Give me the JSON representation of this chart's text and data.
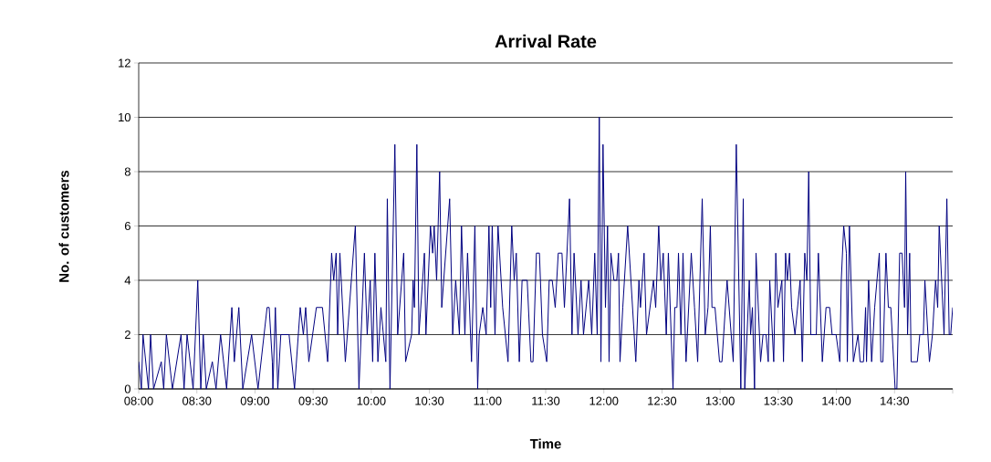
{
  "chart_data": {
    "type": "line",
    "title": "Arrival Rate",
    "xlabel": "Time",
    "ylabel": "No. of customers",
    "color": "#000080",
    "x": [
      8.0,
      8.023,
      8.037,
      8.084,
      8.102,
      8.128,
      8.194,
      8.215,
      8.238,
      8.29,
      8.364,
      8.39,
      8.416,
      8.468,
      8.508,
      8.534,
      8.555,
      8.581,
      8.633,
      8.665,
      8.704,
      8.756,
      8.801,
      8.822,
      8.861,
      8.895,
      8.971,
      9.026,
      9.104,
      9.122,
      9.149,
      9.154,
      9.175,
      9.196,
      9.222,
      9.293,
      9.34,
      9.389,
      9.416,
      9.436,
      9.463,
      9.528,
      9.58,
      9.625,
      9.659,
      9.677,
      9.698,
      9.711,
      9.73,
      9.777,
      9.863,
      9.894,
      9.941,
      9.965,
      9.991,
      10.012,
      10.031,
      10.057,
      10.083,
      10.125,
      10.138,
      10.161,
      10.203,
      10.227,
      10.279,
      10.295,
      10.347,
      10.36,
      10.371,
      10.392,
      10.41,
      10.457,
      10.47,
      10.509,
      10.528,
      10.541,
      10.562,
      10.588,
      10.606,
      10.674,
      10.7,
      10.726,
      10.758,
      10.776,
      10.805,
      10.828,
      10.862,
      10.891,
      10.915,
      10.928,
      10.959,
      10.988,
      11.012,
      11.027,
      11.04,
      11.064,
      11.09,
      11.13,
      11.176,
      11.208,
      11.229,
      11.247,
      11.273,
      11.297,
      11.341,
      11.373,
      11.391,
      11.42,
      11.446,
      11.472,
      11.509,
      11.53,
      11.556,
      11.582,
      11.608,
      11.64,
      11.661,
      11.705,
      11.726,
      11.744,
      11.778,
      11.804,
      11.825,
      11.87,
      11.896,
      11.922,
      11.943,
      11.961,
      11.975,
      11.993,
      12.014,
      12.032,
      12.045,
      12.061,
      12.087,
      12.111,
      12.126,
      12.139,
      12.163,
      12.205,
      12.275,
      12.302,
      12.315,
      12.346,
      12.367,
      12.427,
      12.446,
      12.472,
      12.49,
      12.511,
      12.537,
      12.555,
      12.595,
      12.61,
      12.629,
      12.642,
      12.663,
      12.681,
      12.707,
      12.752,
      12.78,
      12.807,
      12.846,
      12.872,
      12.896,
      12.916,
      12.93,
      12.956,
      12.995,
      13.016,
      13.06,
      13.113,
      13.139,
      13.178,
      13.199,
      13.212,
      13.251,
      13.262,
      13.278,
      13.296,
      13.309,
      13.348,
      13.369,
      13.395,
      13.414,
      13.427,
      13.461,
      13.479,
      13.497,
      13.531,
      13.545,
      13.563,
      13.578,
      13.597,
      13.615,
      13.644,
      13.688,
      13.707,
      13.728,
      13.746,
      13.762,
      13.78,
      13.827,
      13.845,
      13.879,
      13.911,
      13.942,
      13.963,
      13.997,
      14.029,
      14.042,
      14.063,
      14.086,
      14.094,
      14.112,
      14.146,
      14.186,
      14.204,
      14.233,
      14.251,
      14.259,
      14.277,
      14.303,
      14.329,
      14.369,
      14.382,
      14.4,
      14.426,
      14.447,
      14.468,
      14.505,
      14.52,
      14.544,
      14.565,
      14.586,
      14.596,
      14.612,
      14.63,
      14.643,
      14.696,
      14.717,
      14.748,
      14.761,
      14.8,
      14.826,
      14.853,
      14.871,
      14.884,
      14.926,
      14.95,
      14.97,
      14.983,
      15.0
    ],
    "values": [
      1,
      0,
      2,
      0,
      2,
      0,
      1,
      0,
      2,
      0,
      2,
      0,
      2,
      0,
      4,
      0,
      2,
      0,
      1,
      0,
      2,
      0,
      3,
      1,
      3,
      0,
      2,
      0,
      3,
      3,
      1,
      0,
      3,
      0,
      2,
      2,
      0,
      3,
      2,
      3,
      1,
      3,
      3,
      1,
      5,
      4,
      5,
      2,
      5,
      1,
      6,
      0,
      5,
      2,
      4,
      1,
      5,
      1,
      3,
      1,
      7,
      0,
      9,
      2,
      5,
      1,
      2,
      4,
      3,
      9,
      2,
      5,
      2,
      6,
      5,
      6,
      4,
      8,
      3,
      7,
      2,
      4,
      2,
      6,
      2,
      5,
      1,
      6,
      0,
      2,
      3,
      2,
      6,
      3,
      6,
      2,
      6,
      3,
      1,
      6,
      4,
      5,
      1,
      4,
      4,
      1,
      1,
      5,
      5,
      2,
      1,
      4,
      4,
      3,
      5,
      5,
      3,
      7,
      2,
      5,
      2,
      4,
      2,
      4,
      2,
      5,
      2,
      10,
      1,
      9,
      3,
      6,
      1,
      5,
      4,
      4,
      5,
      1,
      3,
      6,
      1,
      4,
      3,
      5,
      2,
      4,
      3,
      6,
      4,
      5,
      2,
      5,
      0,
      3,
      3,
      5,
      2,
      5,
      1,
      5,
      3,
      1,
      7,
      2,
      3,
      6,
      3,
      3,
      1,
      1,
      4,
      1,
      9,
      0,
      7,
      0,
      4,
      2,
      3,
      0,
      5,
      1,
      2,
      2,
      1,
      4,
      1,
      5,
      3,
      4,
      1,
      5,
      4,
      5,
      3,
      2,
      4,
      1,
      5,
      4,
      8,
      2,
      2,
      5,
      1,
      3,
      3,
      2,
      2,
      1,
      4,
      6,
      5,
      1,
      6,
      1,
      2,
      1,
      1,
      3,
      1,
      4,
      1,
      3,
      5,
      1,
      1,
      5,
      3,
      3,
      0,
      0,
      5,
      5,
      3,
      8,
      2,
      5,
      1,
      1,
      2,
      2,
      4,
      1,
      2,
      4,
      3,
      6,
      2,
      7,
      2,
      2,
      3
    ],
    "xlim": [
      8,
      15
    ],
    "ylim": [
      0,
      12
    ],
    "xticks": [
      {
        "value": 8,
        "label": "08:00"
      },
      {
        "value": 8.5,
        "label": "08:30"
      },
      {
        "value": 9,
        "label": "09:00"
      },
      {
        "value": 9.5,
        "label": "09:30"
      },
      {
        "value": 10,
        "label": "10:00"
      },
      {
        "value": 10.5,
        "label": "10:30"
      },
      {
        "value": 11,
        "label": "11:00"
      },
      {
        "value": 11.5,
        "label": "11:30"
      },
      {
        "value": 12,
        "label": "12:00"
      },
      {
        "value": 12.5,
        "label": "12:30"
      },
      {
        "value": 13,
        "label": "13:00"
      },
      {
        "value": 13.5,
        "label": "13:30"
      },
      {
        "value": 14,
        "label": "14:00"
      },
      {
        "value": 14.5,
        "label": "14:30"
      },
      {
        "value": 15,
        "label": null
      }
    ],
    "yticks": [
      0,
      2,
      4,
      6,
      8,
      10,
      12
    ],
    "grid": "y",
    "marker": "none"
  }
}
